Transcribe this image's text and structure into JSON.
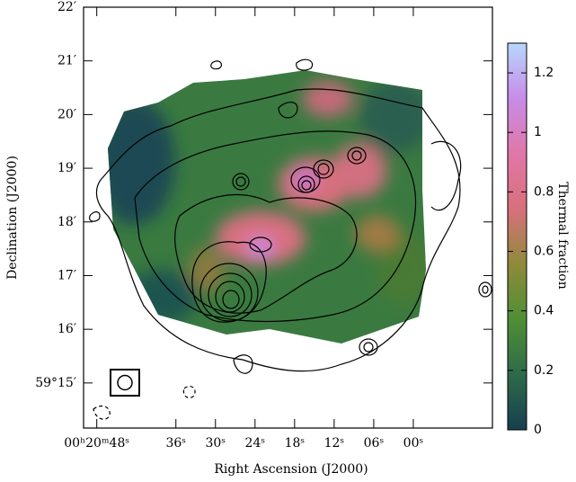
{
  "chart_data": {
    "type": "image",
    "x_label": "Right Ascension (J2000)",
    "y_label": "Declination (J2000)",
    "colorbar_label": "Thermal fraction",
    "xlim": [
      50,
      -12
    ],
    "xticks": [
      {
        "value": 48,
        "label": "00ʰ20ᵐ48ˢ"
      },
      {
        "value": 36,
        "label": "36ˢ"
      },
      {
        "value": 30,
        "label": "30ˢ"
      },
      {
        "value": 24,
        "label": "24ˢ"
      },
      {
        "value": 18,
        "label": "18ˢ"
      },
      {
        "value": 12,
        "label": "12ˢ"
      },
      {
        "value": 6,
        "label": "06ˢ"
      },
      {
        "value": 0,
        "label": "00ˢ"
      }
    ],
    "ylim": [
      14.16,
      22
    ],
    "yticks": [
      {
        "value": 15,
        "label": "59°15′"
      },
      {
        "value": 16,
        "label": "16′"
      },
      {
        "value": 17,
        "label": "17′"
      },
      {
        "value": 18,
        "label": "18′"
      },
      {
        "value": 19,
        "label": "19′"
      },
      {
        "value": 20,
        "label": "20′"
      },
      {
        "value": 21,
        "label": "21′"
      },
      {
        "value": 22,
        "label": "22′"
      }
    ],
    "clim": [
      0,
      1.3
    ],
    "cticks": [
      0,
      0.2,
      0.4,
      0.6,
      0.8,
      1,
      1.2
    ],
    "colormap": [
      "#173f4f",
      "#2e6a4a",
      "#4f8f35",
      "#8f8a3a",
      "#d8707c",
      "#e077a8",
      "#c78ce8",
      "#b7d7fb"
    ]
  }
}
